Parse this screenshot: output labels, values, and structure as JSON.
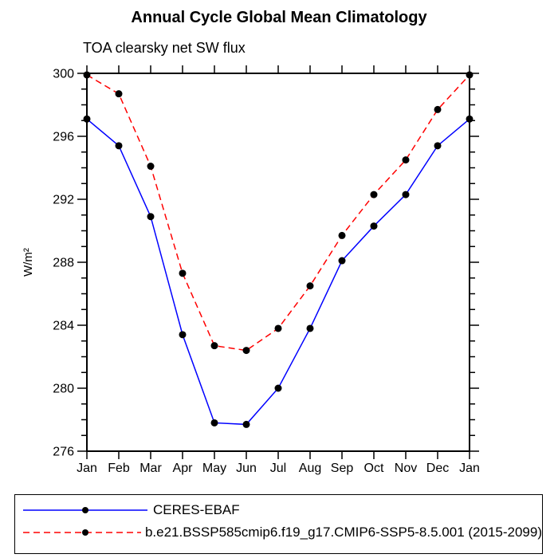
{
  "chart_data": {
    "type": "line",
    "title": "Annual Cycle Global Mean Climatology",
    "subtitle": "TOA clearsky net SW flux",
    "xlabel": "",
    "ylabel": "W/m²",
    "categories": [
      "Jan",
      "Feb",
      "Mar",
      "Apr",
      "May",
      "Jun",
      "Jul",
      "Aug",
      "Sep",
      "Oct",
      "Nov",
      "Dec",
      "Jan"
    ],
    "series": [
      {
        "name": "CERES-EBAF",
        "line_color": "#0000ff",
        "line_style": "solid",
        "marker": "filled-circle",
        "marker_color": "#000000",
        "values": [
          297.1,
          295.4,
          290.9,
          283.4,
          277.8,
          277.7,
          280.0,
          283.8,
          288.1,
          290.3,
          292.3,
          295.4,
          297.1
        ]
      },
      {
        "name": "b.e21.BSSP585cmip6.f19_g17.CMIP6-SSP5-8.5.001 (2015-2099)",
        "line_color": "#ff0000",
        "line_style": "dashed",
        "marker": "filled-circle",
        "marker_color": "#000000",
        "values": [
          299.9,
          298.7,
          294.1,
          287.3,
          282.7,
          282.4,
          283.8,
          286.5,
          289.7,
          292.3,
          294.5,
          297.7,
          299.9
        ]
      }
    ],
    "ylim": [
      276,
      300
    ],
    "ytick_major": [
      276,
      280,
      284,
      288,
      292,
      296,
      300
    ],
    "ytick_minor_step": 1,
    "grid": false,
    "tick_direction": "out",
    "axis_color": "#000000",
    "legend_position": "bottom"
  }
}
